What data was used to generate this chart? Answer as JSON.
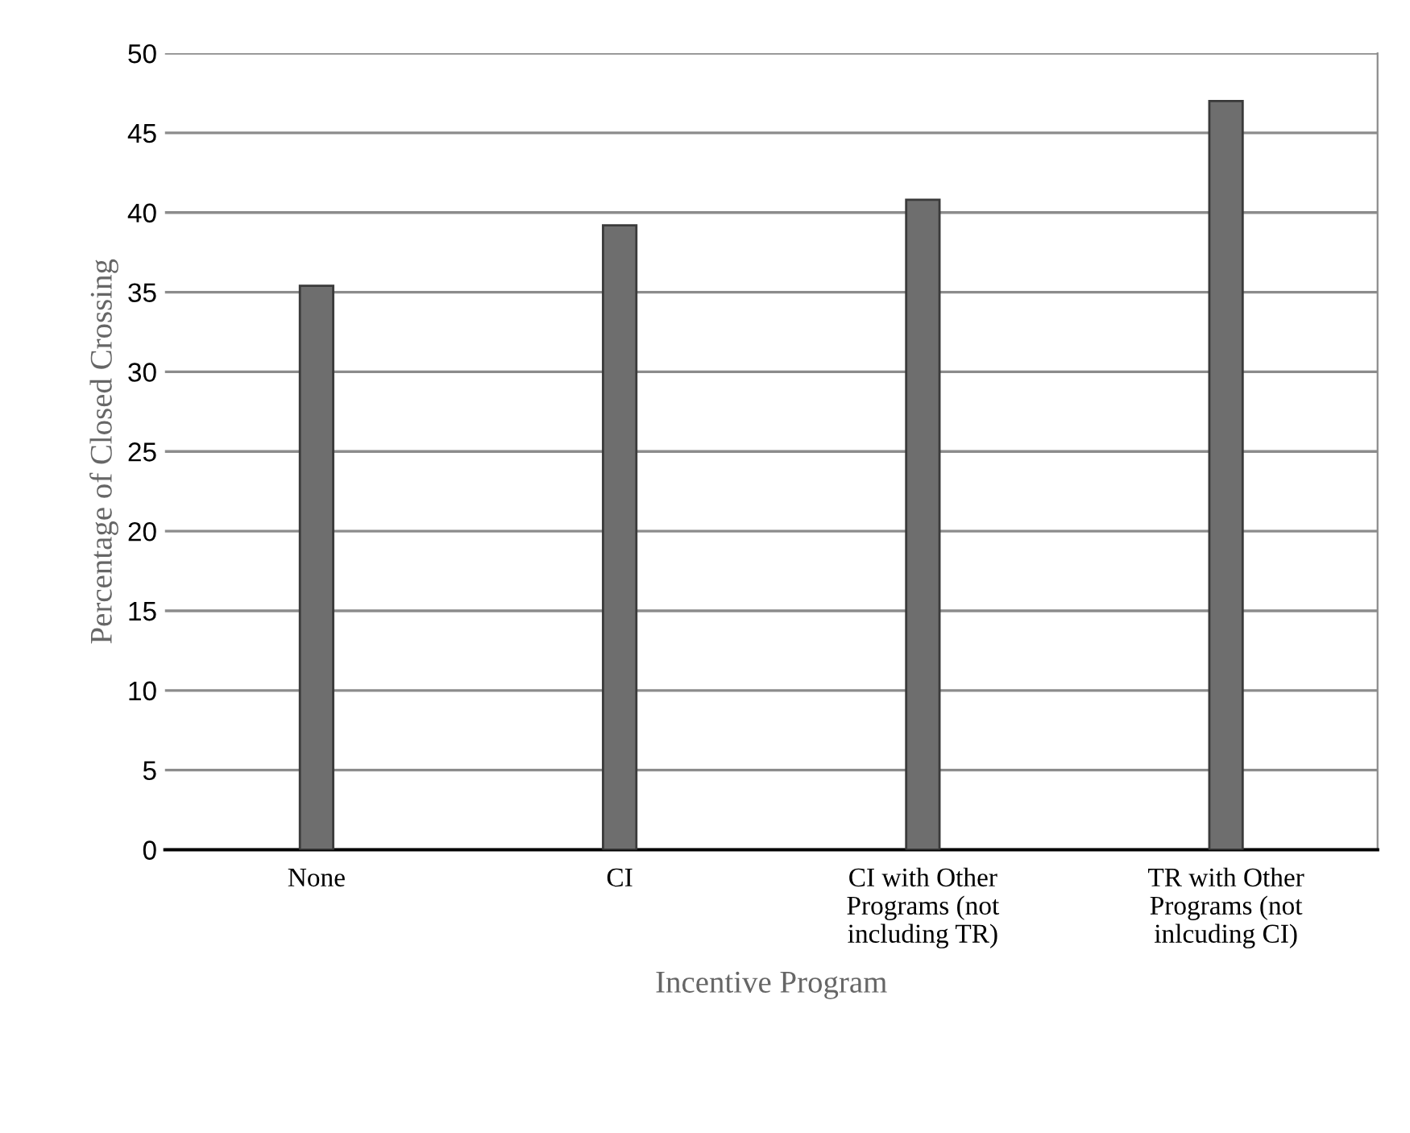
{
  "chart_data": {
    "type": "bar",
    "xlabel": "Incentive Program",
    "ylabel": "Percentage of Closed Crossing",
    "categories": [
      "None",
      "CI",
      "CI with Other\nPrograms (not\nincluding TR)",
      "TR with Other\nPrograms (not\ninlcuding CI)"
    ],
    "values": [
      35.4,
      39.2,
      40.8,
      47.0
    ],
    "color": "#6e6e6e",
    "ylim": [
      0,
      50
    ],
    "yticks": [
      0,
      5,
      10,
      15,
      20,
      25,
      30,
      35,
      40,
      45,
      50
    ],
    "grid": "y",
    "legend": false
  }
}
